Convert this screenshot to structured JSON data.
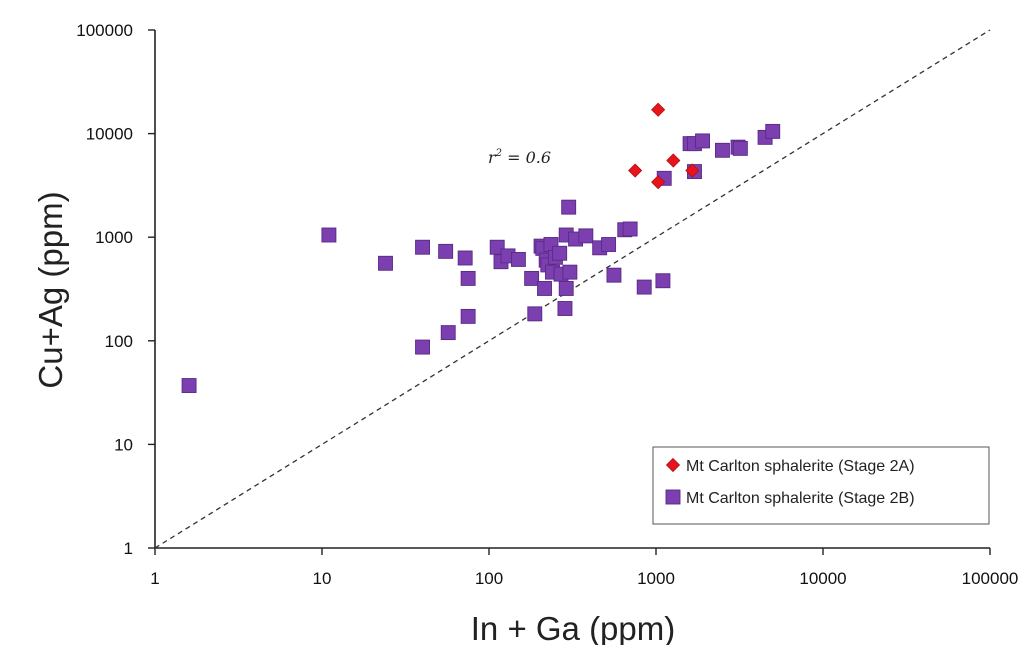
{
  "chart_data": {
    "type": "scatter",
    "title": "",
    "xlabel": "In + Ga (ppm)",
    "ylabel": "Cu+Ag (ppm)",
    "xscale": "log",
    "yscale": "log",
    "xlim": [
      1,
      100000
    ],
    "ylim": [
      1,
      100000
    ],
    "x_ticks": [
      "1",
      "10",
      "100",
      "1000",
      "10000",
      "100000"
    ],
    "y_ticks": [
      "1",
      "10",
      "100",
      "1000",
      "10000",
      "100000"
    ],
    "grid": false,
    "legend_position": "bottom-right",
    "annotation": {
      "r_label": "r",
      "r_power": "2",
      "r_value": " = 0.6"
    },
    "reference_line": {
      "type": "1:1",
      "style": "dashed"
    },
    "series": [
      {
        "name": "Mt Carlton sphalerite (Stage 2A)",
        "marker": "diamond",
        "color": "#e8141c",
        "points": [
          [
            1030,
            17000
          ],
          [
            750,
            4400
          ],
          [
            1270,
            5500
          ],
          [
            1030,
            3400
          ],
          [
            1650,
            4400
          ]
        ]
      },
      {
        "name": "Mt Carlton sphalerite (Stage 2B)",
        "marker": "square",
        "color": "#7b3fb0",
        "points": [
          [
            1.6,
            37
          ],
          [
            11,
            1050
          ],
          [
            24,
            560
          ],
          [
            40,
            800
          ],
          [
            40,
            87
          ],
          [
            55,
            730
          ],
          [
            57,
            120
          ],
          [
            72,
            630
          ],
          [
            75,
            400
          ],
          [
            75,
            172
          ],
          [
            112,
            800
          ],
          [
            118,
            580
          ],
          [
            130,
            660
          ],
          [
            150,
            610
          ],
          [
            180,
            400
          ],
          [
            188,
            182
          ],
          [
            205,
            820
          ],
          [
            210,
            780
          ],
          [
            215,
            320
          ],
          [
            220,
            600
          ],
          [
            225,
            540
          ],
          [
            235,
            850
          ],
          [
            240,
            460
          ],
          [
            250,
            640
          ],
          [
            265,
            700
          ],
          [
            270,
            440
          ],
          [
            285,
            205
          ],
          [
            290,
            320
          ],
          [
            290,
            1050
          ],
          [
            300,
            1950
          ],
          [
            305,
            460
          ],
          [
            330,
            960
          ],
          [
            380,
            1030
          ],
          [
            460,
            790
          ],
          [
            520,
            850
          ],
          [
            560,
            430
          ],
          [
            650,
            1180
          ],
          [
            700,
            1200
          ],
          [
            850,
            330
          ],
          [
            1100,
            380
          ],
          [
            1120,
            3700
          ],
          [
            1600,
            8000
          ],
          [
            1700,
            8000
          ],
          [
            1700,
            4300
          ],
          [
            1900,
            8500
          ],
          [
            2500,
            6900
          ],
          [
            3100,
            7400
          ],
          [
            3200,
            7200
          ],
          [
            4500,
            9200
          ],
          [
            5000,
            10500
          ]
        ]
      }
    ]
  }
}
